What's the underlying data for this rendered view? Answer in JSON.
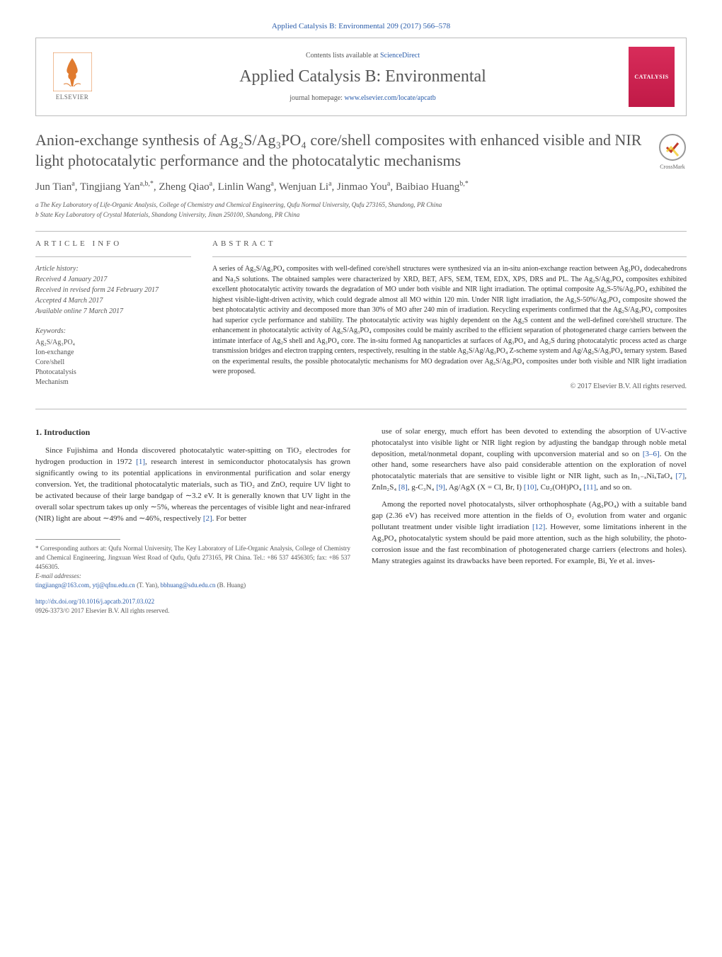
{
  "top": {
    "citation": "Applied Catalysis B: Environmental 209 (2017) 566–578",
    "contents_prefix": "Contents lists available at ",
    "contents_link": "ScienceDirect",
    "journal_name": "Applied Catalysis B: Environmental",
    "homepage_prefix": "journal homepage: ",
    "homepage_url": "www.elsevier.com/locate/apcatb",
    "publisher": "ELSEVIER",
    "cover_text": "CATALYSIS"
  },
  "article": {
    "title": "Anion-exchange synthesis of Ag₂S/Ag₃PO₄ core/shell composites with enhanced visible and NIR light photocatalytic performance and the photocatalytic mechanisms",
    "crossmark_label": "CrossMark",
    "authors_html": "Jun Tian<sup>a</sup>, Tingjiang Yan<sup>a,b,*</sup>, Zheng Qiao<sup>a</sup>, Linlin Wang<sup>a</sup>, Wenjuan Li<sup>a</sup>, Jinmao You<sup>a</sup>, Baibiao Huang<sup>b,*</sup>",
    "affiliations": [
      "a The Key Laboratory of Life-Organic Analysis, College of Chemistry and Chemical Engineering, Qufu Normal University, Qufu 273165, Shandong, PR China",
      "b State Key Laboratory of Crystal Materials, Shandong University, Jinan 250100, Shandong, PR China"
    ]
  },
  "info": {
    "heading": "article info",
    "history_label": "Article history:",
    "history": [
      "Received 4 January 2017",
      "Received in revised form 24 February 2017",
      "Accepted 4 March 2017",
      "Available online 7 March 2017"
    ],
    "keywords_label": "Keywords:",
    "keywords": [
      "Ag₂S/Ag₃PO₄",
      "Ion-exchange",
      "Core/shell",
      "Photocatalysis",
      "Mechanism"
    ]
  },
  "abstract": {
    "heading": "abstract",
    "text": "A series of Ag₂S/Ag₃PO₄ composites with well-defined core/shell structures were synthesized via an in-situ anion-exchange reaction between Ag₃PO₄ dodecahedrons and Na₂S solutions. The obtained samples were characterized by XRD, BET, AFS, SEM, TEM, EDX, XPS, DRS and PL. The Ag₂S/Ag₃PO₄ composites exhibited excellent photocatalytic activity towards the degradation of MO under both visible and NIR light irradiation. The optimal composite Ag₂S-5%/Ag₃PO₄ exhibited the highest visible-light-driven activity, which could degrade almost all MO within 120 min. Under NIR light irradiation, the Ag₂S-50%/Ag₃PO₄ composite showed the best photocatalytic activity and decomposed more than 30% of MO after 240 min of irradiation. Recycling experiments confirmed that the Ag₂S/Ag₃PO₄ composites had superior cycle performance and stability. The photocatalytic activity was highly dependent on the Ag₂S content and the well-defined core/shell structure. The enhancement in photocatalytic activity of Ag₂S/Ag₃PO₄ composites could be mainly ascribed to the efficient separation of photogenerated charge carriers between the intimate interface of Ag₂S shell and Ag₃PO₄ core. The in-situ formed Ag nanoparticles at surfaces of Ag₃PO₄ and Ag₂S during photocatalytic process acted as charge transmission bridges and electron trapping centers, respectively, resulting in the stable Ag₂S/Ag/Ag₃PO₄ Z-scheme system and Ag/Ag₂S/Ag₃PO₄ ternary system. Based on the experimental results, the possible photocatalytic mechanisms for MO degradation over Ag₂S/Ag₃PO₄ composites under both visible and NIR light irradiation were proposed.",
    "copyright": "© 2017 Elsevier B.V. All rights reserved."
  },
  "body": {
    "section_heading": "1. Introduction",
    "left_p1": "Since Fujishima and Honda discovered photocatalytic water-spitting on TiO₂ electrodes for hydrogen production in 1972 [1], research interest in semiconductor photocatalysis has grown significantly owing to its potential applications in environmental purification and solar energy conversion. Yet, the traditional photocatalytic materials, such as TiO₂ and ZnO, require UV light to be activated because of their large bandgap of ∼3.2 eV. It is generally known that UV light in the overall solar spectrum takes up only ∼5%, whereas the percentages of visible light and near-infrared (NIR) light are about ∼49% and ∼46%, respectively [2]. For better",
    "right_p1": "use of solar energy, much effort has been devoted to extending the absorption of UV-active photocatalyst into visible light or NIR light region by adjusting the bandgap through noble metal deposition, metal/nonmetal dopant, coupling with upconversion material and so on [3–6]. On the other hand, some researchers have also paid considerable attention on the exploration of novel photocatalytic materials that are sensitive to visible light or NIR light, such as In₁₋ₓNiₓTaO₄ [7], ZnIn₂S₄ [8], g-C₃N₄ [9], Ag/AgX (X = Cl, Br, I) [10], Cu₂(OH)PO₄ [11], and so on.",
    "right_p2": "Among the reported novel photocatalysts, silver orthophosphate (Ag₃PO₄) with a suitable band gap (2.36 eV) has received more attention in the fields of O₂ evolution from water and organic pollutant treatment under visible light irradiation [12]. However, some limitations inherent in the Ag₃PO₄ photocatalytic system should be paid more attention, such as the high solubility, the photo-corrosion issue and the fast recombination of photogenerated charge carriers (electrons and holes). Many strategies against its drawbacks have been reported. For example, Bi, Ye et al. inves-"
  },
  "footnotes": {
    "corresponding": "* Corresponding authors at: Qufu Normal University, The Key Laboratory of Life-Organic Analysis, College of Chemistry and Chemical Engineering, Jingxuan West Road of Qufu, Qufu 273165, PR China. Tel.: +86 537 4456305; fax: +86 537 4456305.",
    "email_label": "E-mail addresses:",
    "emails": "tingjiangn@163.com, ytj@qfnu.edu.cn (T. Yan), bbhuang@sdu.edu.cn (B. Huang)"
  },
  "footer": {
    "doi": "http://dx.doi.org/10.1016/j.apcatb.2017.03.022",
    "issn_line": "0926-3373/© 2017 Elsevier B.V. All rights reserved."
  },
  "styles": {
    "accent_color": "#2a5caa",
    "journal_cover_bg": "#d82c5a",
    "text_muted": "#555555",
    "border_color": "#bbbbbb"
  }
}
